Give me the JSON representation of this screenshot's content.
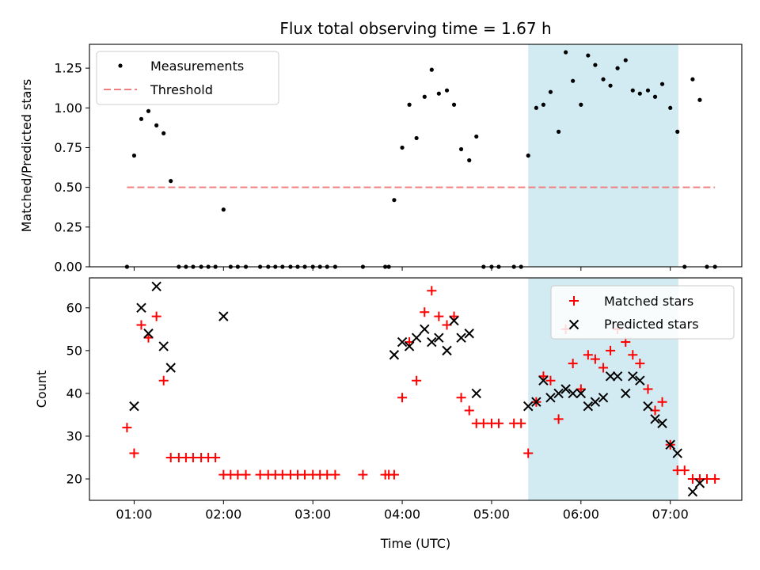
{
  "chart_data": [
    {
      "type": "scatter",
      "title": "Flux total observing time = 1.67 h",
      "xlabel": "",
      "ylabel": "Matched/Predicted stars",
      "ylim": [
        0,
        1.4
      ],
      "xlim": [
        0.5,
        7.8
      ],
      "y_ticks": [
        "0.00",
        "0.25",
        "0.50",
        "0.75",
        "1.00",
        "1.25"
      ],
      "legend_position": "top-left",
      "shaded_region": {
        "x_start": 5.41,
        "x_end": 7.09,
        "color": "#add8e6"
      },
      "series": [
        {
          "name": "Measurements",
          "color": "#000000",
          "marker": "dot",
          "points": [
            [
              0.92,
              0
            ],
            [
              1.0,
              0.7
            ],
            [
              1.08,
              0.93
            ],
            [
              1.16,
              0.98
            ],
            [
              1.25,
              0.89
            ],
            [
              1.33,
              0.84
            ],
            [
              1.41,
              0.54
            ],
            [
              1.5,
              0
            ],
            [
              1.58,
              0
            ],
            [
              1.66,
              0
            ],
            [
              1.75,
              0
            ],
            [
              1.83,
              0
            ],
            [
              1.91,
              0
            ],
            [
              2.0,
              0.36
            ],
            [
              2.08,
              0
            ],
            [
              2.16,
              0
            ],
            [
              2.25,
              0
            ],
            [
              2.41,
              0
            ],
            [
              2.5,
              0
            ],
            [
              2.58,
              0
            ],
            [
              2.66,
              0
            ],
            [
              2.75,
              0
            ],
            [
              2.83,
              0
            ],
            [
              2.91,
              0
            ],
            [
              3.0,
              0
            ],
            [
              3.08,
              0
            ],
            [
              3.16,
              0
            ],
            [
              3.25,
              0
            ],
            [
              3.56,
              0
            ],
            [
              3.81,
              0
            ],
            [
              3.85,
              0
            ],
            [
              3.91,
              0.42
            ],
            [
              4.0,
              0.75
            ],
            [
              4.08,
              1.02
            ],
            [
              4.16,
              0.81
            ],
            [
              4.25,
              1.07
            ],
            [
              4.33,
              1.24
            ],
            [
              4.41,
              1.09
            ],
            [
              4.5,
              1.11
            ],
            [
              4.58,
              1.02
            ],
            [
              4.66,
              0.74
            ],
            [
              4.75,
              0.67
            ],
            [
              4.83,
              0.82
            ],
            [
              4.91,
              0
            ],
            [
              5.0,
              0
            ],
            [
              5.08,
              0
            ],
            [
              5.25,
              0
            ],
            [
              5.33,
              0
            ],
            [
              5.41,
              0.7
            ],
            [
              5.5,
              1.0
            ],
            [
              5.58,
              1.02
            ],
            [
              5.66,
              1.1
            ],
            [
              5.75,
              0.85
            ],
            [
              5.83,
              1.35
            ],
            [
              5.91,
              1.17
            ],
            [
              6.0,
              1.02
            ],
            [
              6.08,
              1.33
            ],
            [
              6.16,
              1.27
            ],
            [
              6.25,
              1.18
            ],
            [
              6.33,
              1.14
            ],
            [
              6.41,
              1.25
            ],
            [
              6.5,
              1.3
            ],
            [
              6.58,
              1.11
            ],
            [
              6.66,
              1.09
            ],
            [
              6.75,
              1.11
            ],
            [
              6.83,
              1.07
            ],
            [
              6.91,
              1.15
            ],
            [
              7.0,
              1.0
            ],
            [
              7.08,
              0.85
            ],
            [
              7.16,
              0
            ],
            [
              7.25,
              1.18
            ],
            [
              7.33,
              1.05
            ],
            [
              7.41,
              0
            ],
            [
              7.5,
              0
            ]
          ]
        },
        {
          "name": "Threshold",
          "color": "#f08080",
          "style": "dashed",
          "points": [
            [
              0.92,
              0.5
            ],
            [
              7.5,
              0.5
            ]
          ]
        }
      ]
    },
    {
      "type": "scatter",
      "title": "",
      "xlabel": "Time (UTC)",
      "ylabel": "Count",
      "ylim": [
        15,
        67
      ],
      "xlim": [
        0.5,
        7.8
      ],
      "x_ticks": [
        "01:00",
        "02:00",
        "03:00",
        "04:00",
        "05:00",
        "06:00",
        "07:00"
      ],
      "y_ticks": [
        "20",
        "30",
        "40",
        "50",
        "60"
      ],
      "legend_position": "top-right",
      "shaded_region": {
        "x_start": 5.41,
        "x_end": 7.09,
        "color": "#add8e6"
      },
      "series": [
        {
          "name": "Matched stars",
          "color": "#ff0000",
          "marker": "plus",
          "points": [
            [
              0.92,
              32
            ],
            [
              1.0,
              26
            ],
            [
              1.08,
              56
            ],
            [
              1.16,
              53
            ],
            [
              1.25,
              58
            ],
            [
              1.33,
              43
            ],
            [
              1.41,
              25
            ],
            [
              1.5,
              25
            ],
            [
              1.58,
              25
            ],
            [
              1.66,
              25
            ],
            [
              1.75,
              25
            ],
            [
              1.83,
              25
            ],
            [
              1.91,
              25
            ],
            [
              2.0,
              21
            ],
            [
              2.08,
              21
            ],
            [
              2.16,
              21
            ],
            [
              2.25,
              21
            ],
            [
              2.41,
              21
            ],
            [
              2.5,
              21
            ],
            [
              2.58,
              21
            ],
            [
              2.66,
              21
            ],
            [
              2.75,
              21
            ],
            [
              2.83,
              21
            ],
            [
              2.91,
              21
            ],
            [
              3.0,
              21
            ],
            [
              3.08,
              21
            ],
            [
              3.16,
              21
            ],
            [
              3.25,
              21
            ],
            [
              3.56,
              21
            ],
            [
              3.81,
              21
            ],
            [
              3.85,
              21
            ],
            [
              3.91,
              21
            ],
            [
              4.0,
              39
            ],
            [
              4.08,
              52
            ],
            [
              4.16,
              43
            ],
            [
              4.25,
              59
            ],
            [
              4.33,
              64
            ],
            [
              4.41,
              58
            ],
            [
              4.5,
              56
            ],
            [
              4.58,
              58
            ],
            [
              4.66,
              39
            ],
            [
              4.75,
              36
            ],
            [
              4.83,
              33
            ],
            [
              4.91,
              33
            ],
            [
              5.0,
              33
            ],
            [
              5.08,
              33
            ],
            [
              5.25,
              33
            ],
            [
              5.33,
              33
            ],
            [
              5.41,
              26
            ],
            [
              5.5,
              38
            ],
            [
              5.58,
              44
            ],
            [
              5.66,
              43
            ],
            [
              5.75,
              34
            ],
            [
              5.83,
              55
            ],
            [
              5.91,
              47
            ],
            [
              6.0,
              41
            ],
            [
              6.08,
              49
            ],
            [
              6.16,
              48
            ],
            [
              6.25,
              46
            ],
            [
              6.33,
              50
            ],
            [
              6.41,
              55
            ],
            [
              6.5,
              52
            ],
            [
              6.58,
              49
            ],
            [
              6.66,
              47
            ],
            [
              6.75,
              41
            ],
            [
              6.83,
              36
            ],
            [
              6.91,
              38
            ],
            [
              7.0,
              28
            ],
            [
              7.08,
              22
            ],
            [
              7.16,
              22
            ],
            [
              7.25,
              20
            ],
            [
              7.33,
              20
            ],
            [
              7.41,
              20
            ],
            [
              7.5,
              20
            ]
          ]
        },
        {
          "name": "Predicted stars",
          "color": "#000000",
          "marker": "x",
          "points": [
            [
              1.0,
              37
            ],
            [
              1.08,
              60
            ],
            [
              1.16,
              54
            ],
            [
              1.25,
              65
            ],
            [
              1.33,
              51
            ],
            [
              1.41,
              46
            ],
            [
              2.0,
              58
            ],
            [
              3.91,
              49
            ],
            [
              4.0,
              52
            ],
            [
              4.08,
              51
            ],
            [
              4.16,
              53
            ],
            [
              4.25,
              55
            ],
            [
              4.33,
              52
            ],
            [
              4.41,
              53
            ],
            [
              4.5,
              50
            ],
            [
              4.58,
              57
            ],
            [
              4.66,
              53
            ],
            [
              4.75,
              54
            ],
            [
              4.83,
              40
            ],
            [
              5.41,
              37
            ],
            [
              5.5,
              38
            ],
            [
              5.58,
              43
            ],
            [
              5.66,
              39
            ],
            [
              5.75,
              40
            ],
            [
              5.83,
              41
            ],
            [
              5.91,
              40
            ],
            [
              6.0,
              40
            ],
            [
              6.08,
              37
            ],
            [
              6.16,
              38
            ],
            [
              6.25,
              39
            ],
            [
              6.33,
              44
            ],
            [
              6.41,
              44
            ],
            [
              6.5,
              40
            ],
            [
              6.58,
              44
            ],
            [
              6.66,
              43
            ],
            [
              6.75,
              37
            ],
            [
              6.83,
              34
            ],
            [
              6.91,
              33
            ],
            [
              7.0,
              28
            ],
            [
              7.08,
              26
            ],
            [
              7.25,
              17
            ],
            [
              7.33,
              19
            ]
          ]
        }
      ]
    }
  ]
}
